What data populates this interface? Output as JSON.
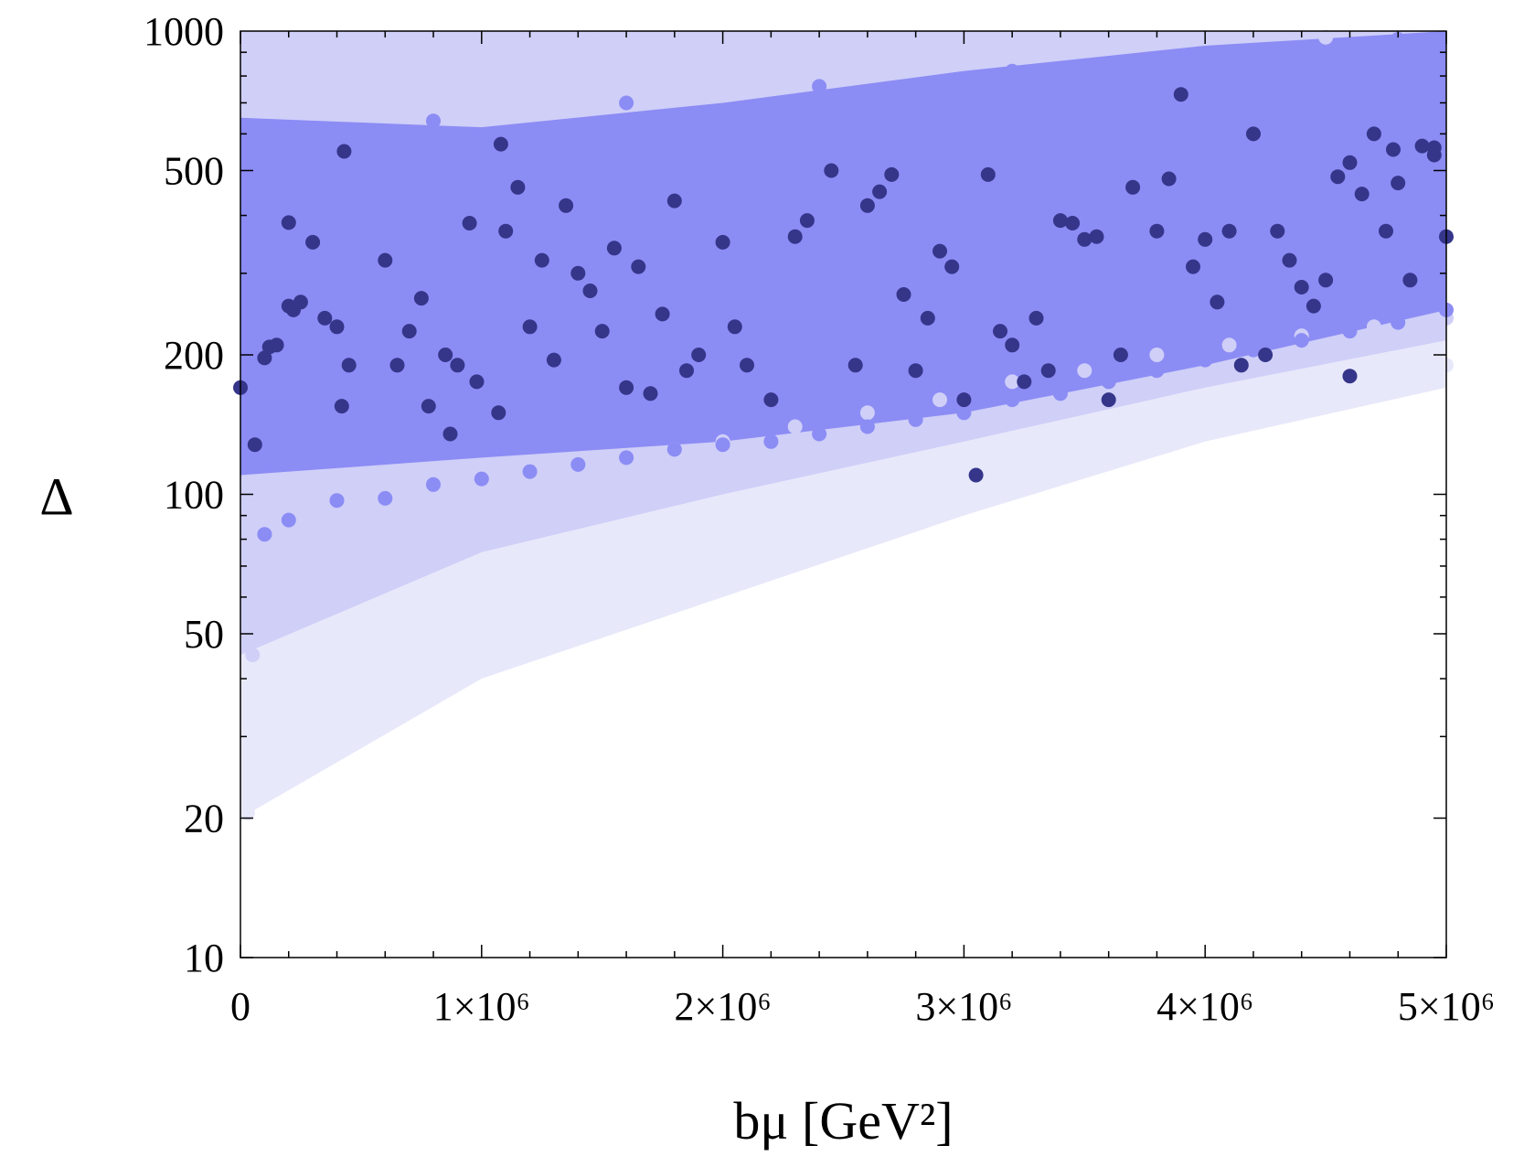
{
  "chart_data": {
    "type": "scatter",
    "xlabel": "bμ [GeV²]",
    "ylabel": "Δ",
    "xlim": [
      0,
      5000000
    ],
    "ylim": [
      10,
      1000
    ],
    "y_scale": "log",
    "x_ticks": [
      {
        "value": 0,
        "label": "0"
      },
      {
        "value": 1000000,
        "label": "1×10⁶"
      },
      {
        "value": 2000000,
        "label": "2×10⁶"
      },
      {
        "value": 3000000,
        "label": "3×10⁶"
      },
      {
        "value": 4000000,
        "label": "4×10⁶"
      },
      {
        "value": 5000000,
        "label": "5×10⁶"
      }
    ],
    "y_ticks": [
      {
        "value": 10,
        "label": "10"
      },
      {
        "value": 20,
        "label": "20"
      },
      {
        "value": 50,
        "label": "50"
      },
      {
        "value": 100,
        "label": "100"
      },
      {
        "value": 200,
        "label": "200"
      },
      {
        "value": 500,
        "label": "500"
      },
      {
        "value": 1000,
        "label": "1000"
      }
    ],
    "grid": false,
    "series": [
      {
        "color": "#e8e8fb",
        "points": [
          [
            30000,
            20.5
          ],
          [
            100000,
            28
          ],
          [
            140000,
            32
          ],
          [
            200000,
            35
          ],
          [
            350000,
            38
          ],
          [
            500000,
            40
          ],
          [
            700000,
            42
          ],
          [
            1000000,
            60
          ],
          [
            1200000,
            70
          ],
          [
            1400000,
            65
          ],
          [
            1600000,
            80
          ],
          [
            1800000,
            90
          ],
          [
            2100000,
            80
          ],
          [
            2400000,
            95
          ],
          [
            2600000,
            100
          ],
          [
            2800000,
            110
          ],
          [
            3000000,
            118
          ],
          [
            3300000,
            130
          ],
          [
            3600000,
            140
          ],
          [
            3900000,
            150
          ],
          [
            4200000,
            160
          ],
          [
            4500000,
            170
          ],
          [
            4800000,
            180
          ],
          [
            5000000,
            190
          ]
        ]
      },
      {
        "color": "#cfcff8",
        "points": [
          [
            50000,
            45
          ],
          [
            150000,
            55
          ],
          [
            250000,
            65
          ],
          [
            400000,
            80
          ],
          [
            600000,
            90
          ],
          [
            800000,
            100
          ],
          [
            1000000,
            110
          ],
          [
            1200000,
            105
          ],
          [
            1500000,
            115
          ],
          [
            1800000,
            125
          ],
          [
            2000000,
            130
          ],
          [
            2300000,
            140
          ],
          [
            2600000,
            150
          ],
          [
            2900000,
            160
          ],
          [
            3200000,
            175
          ],
          [
            3500000,
            185
          ],
          [
            3800000,
            200
          ],
          [
            4100000,
            210
          ],
          [
            4400000,
            220
          ],
          [
            4700000,
            230
          ],
          [
            5000000,
            240
          ],
          [
            400000,
            960
          ],
          [
            1500000,
            940
          ],
          [
            3000000,
            950
          ],
          [
            4500000,
            970
          ]
        ]
      },
      {
        "color": "#8c8cf5",
        "points": [
          [
            100000,
            82
          ],
          [
            200000,
            88
          ],
          [
            400000,
            97
          ],
          [
            600000,
            98
          ],
          [
            800000,
            105
          ],
          [
            1000000,
            108
          ],
          [
            1200000,
            112
          ],
          [
            1400000,
            116
          ],
          [
            1600000,
            120
          ],
          [
            1800000,
            125
          ],
          [
            2000000,
            128
          ],
          [
            2200000,
            130
          ],
          [
            2400000,
            135
          ],
          [
            2600000,
            140
          ],
          [
            2800000,
            145
          ],
          [
            3000000,
            150
          ],
          [
            3200000,
            160
          ],
          [
            3400000,
            165
          ],
          [
            3600000,
            175
          ],
          [
            3800000,
            185
          ],
          [
            4000000,
            195
          ],
          [
            4200000,
            205
          ],
          [
            4400000,
            215
          ],
          [
            4600000,
            225
          ],
          [
            4800000,
            235
          ],
          [
            5000000,
            250
          ],
          [
            200000,
            600
          ],
          [
            800000,
            640
          ],
          [
            1600000,
            700
          ],
          [
            2400000,
            760
          ],
          [
            3200000,
            820
          ],
          [
            4000000,
            880
          ],
          [
            4800000,
            960
          ]
        ]
      },
      {
        "color": "#35358a",
        "points": [
          [
            0,
            170
          ],
          [
            60000,
            128
          ],
          [
            100000,
            197
          ],
          [
            120000,
            208
          ],
          [
            150000,
            210
          ],
          [
            200000,
            386
          ],
          [
            200000,
            255
          ],
          [
            220000,
            250
          ],
          [
            250000,
            260
          ],
          [
            300000,
            350
          ],
          [
            350000,
            240
          ],
          [
            400000,
            230
          ],
          [
            420000,
            155
          ],
          [
            430000,
            550
          ],
          [
            450000,
            190
          ],
          [
            600000,
            320
          ],
          [
            650000,
            190
          ],
          [
            700000,
            225
          ],
          [
            750000,
            265
          ],
          [
            780000,
            155
          ],
          [
            850000,
            200
          ],
          [
            870000,
            135
          ],
          [
            900000,
            190
          ],
          [
            950000,
            385
          ],
          [
            980000,
            175
          ],
          [
            1070000,
            150
          ],
          [
            1080000,
            570
          ],
          [
            1100000,
            370
          ],
          [
            1150000,
            460
          ],
          [
            1200000,
            230
          ],
          [
            1250000,
            320
          ],
          [
            1300000,
            195
          ],
          [
            1350000,
            420
          ],
          [
            1400000,
            300
          ],
          [
            1450000,
            275
          ],
          [
            1500000,
            225
          ],
          [
            1550000,
            340
          ],
          [
            1600000,
            170
          ],
          [
            1650000,
            310
          ],
          [
            1700000,
            165
          ],
          [
            1750000,
            245
          ],
          [
            1800000,
            430
          ],
          [
            1850000,
            185
          ],
          [
            1900000,
            200
          ],
          [
            2000000,
            350
          ],
          [
            2050000,
            230
          ],
          [
            2100000,
            190
          ],
          [
            2200000,
            160
          ],
          [
            2300000,
            360
          ],
          [
            2350000,
            390
          ],
          [
            2450000,
            500
          ],
          [
            2550000,
            190
          ],
          [
            2600000,
            420
          ],
          [
            2650000,
            450
          ],
          [
            2700000,
            490
          ],
          [
            2750000,
            270
          ],
          [
            2800000,
            185
          ],
          [
            2850000,
            240
          ],
          [
            2900000,
            335
          ],
          [
            2950000,
            310
          ],
          [
            3000000,
            160
          ],
          [
            3050000,
            110
          ],
          [
            3100000,
            490
          ],
          [
            3150000,
            225
          ],
          [
            3200000,
            210
          ],
          [
            3250000,
            175
          ],
          [
            3300000,
            240
          ],
          [
            3350000,
            185
          ],
          [
            3400000,
            390
          ],
          [
            3450000,
            385
          ],
          [
            3500000,
            355
          ],
          [
            3550000,
            360
          ],
          [
            3600000,
            160
          ],
          [
            3650000,
            200
          ],
          [
            3700000,
            460
          ],
          [
            3800000,
            370
          ],
          [
            3850000,
            480
          ],
          [
            3900000,
            730
          ],
          [
            3950000,
            310
          ],
          [
            4000000,
            355
          ],
          [
            4050000,
            260
          ],
          [
            4100000,
            370
          ],
          [
            4150000,
            190
          ],
          [
            4200000,
            600
          ],
          [
            4250000,
            200
          ],
          [
            4300000,
            370
          ],
          [
            4350000,
            320
          ],
          [
            4400000,
            280
          ],
          [
            4450000,
            255
          ],
          [
            4500000,
            290
          ],
          [
            4550000,
            485
          ],
          [
            4600000,
            520
          ],
          [
            4650000,
            445
          ],
          [
            4700000,
            600
          ],
          [
            4750000,
            370
          ],
          [
            4780000,
            555
          ],
          [
            4800000,
            470
          ],
          [
            4850000,
            290
          ],
          [
            4900000,
            565
          ],
          [
            4950000,
            540
          ],
          [
            4950000,
            560
          ],
          [
            5000000,
            360
          ],
          [
            4600000,
            180
          ]
        ]
      }
    ]
  }
}
